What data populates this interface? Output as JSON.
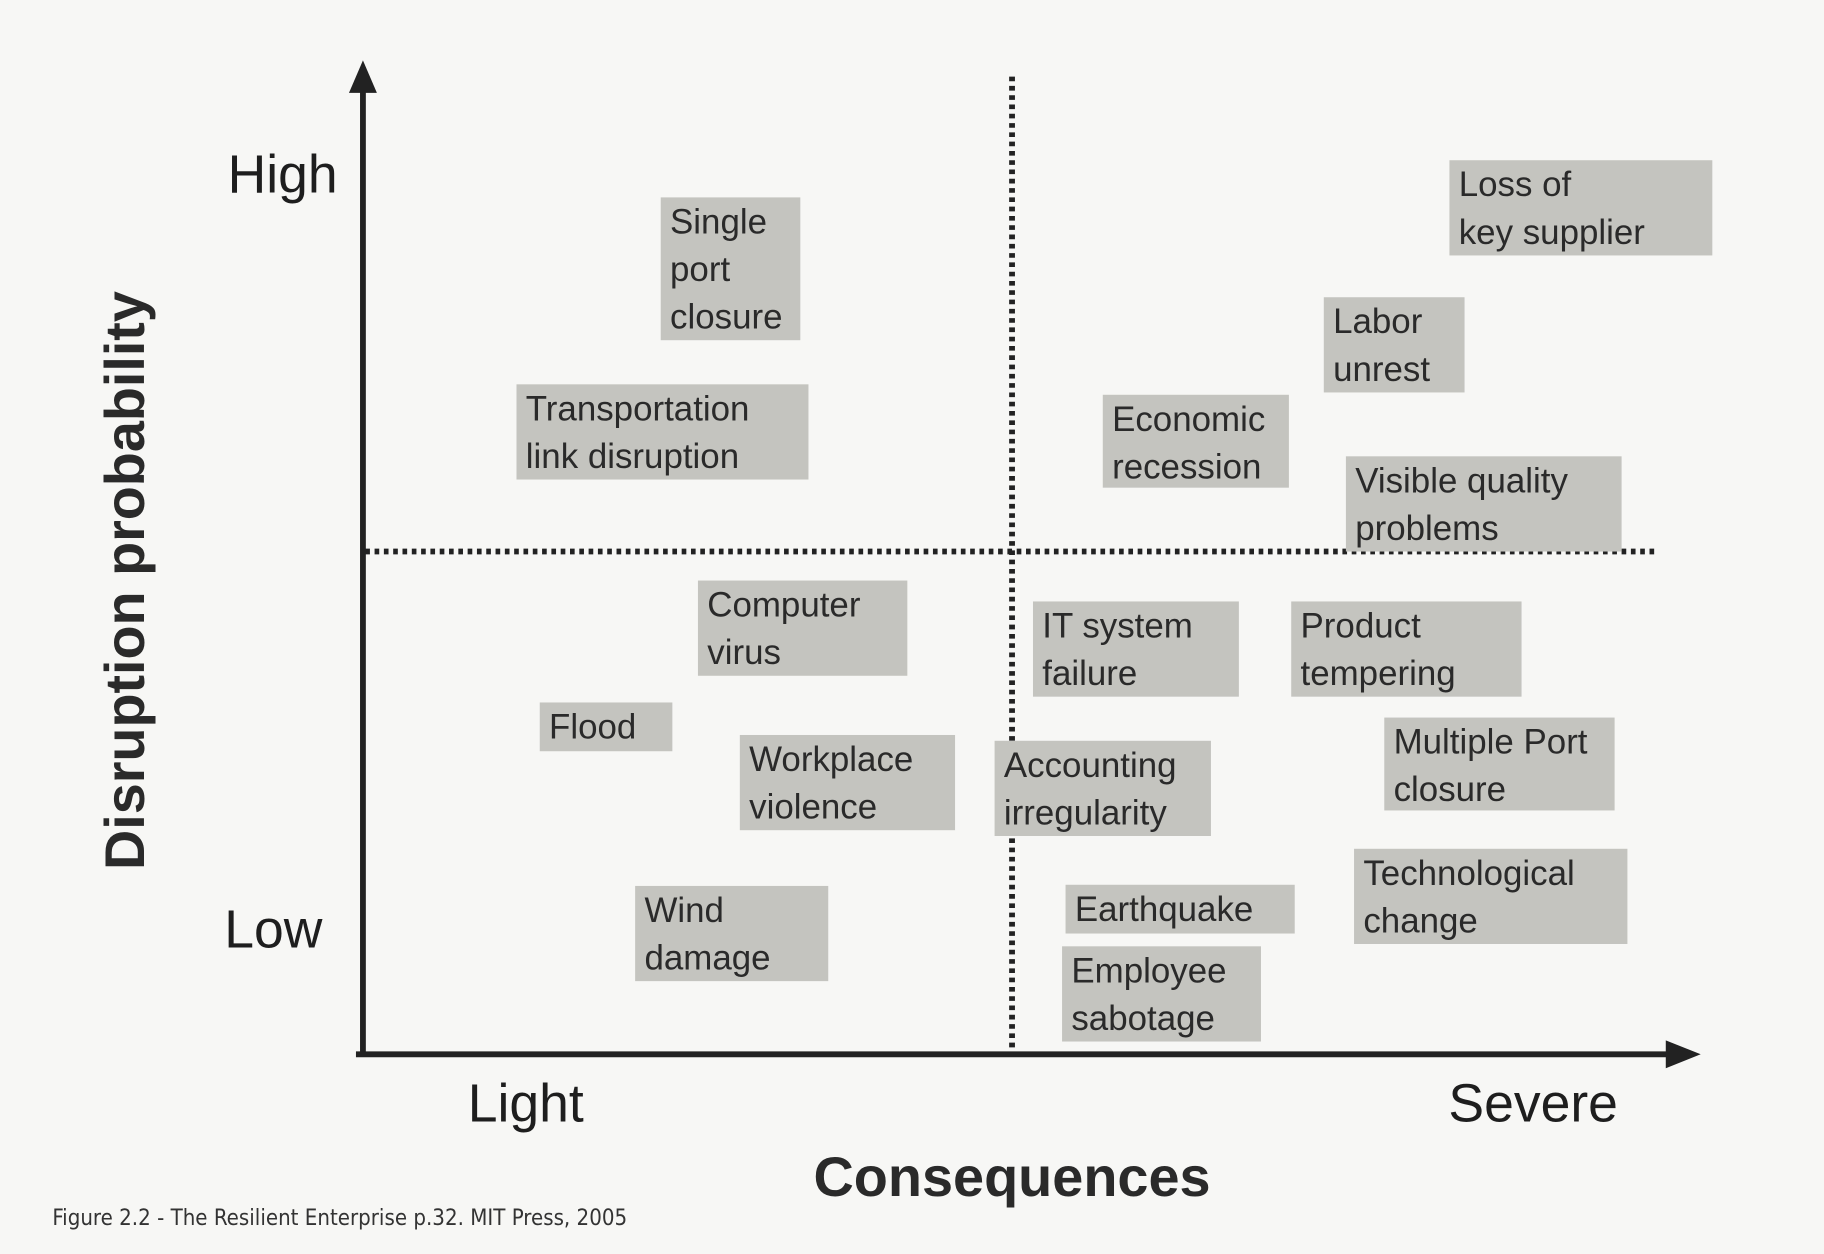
{
  "axes": {
    "y_title": "Disruption probability",
    "y_high": "High",
    "y_low": "Low",
    "x_title": "Consequences",
    "x_low": "Light",
    "x_high": "Severe"
  },
  "items": [
    {
      "lines": [
        "Single",
        "port",
        "closure"
      ]
    },
    {
      "lines": [
        "Transportation",
        "link disruption"
      ]
    },
    {
      "lines": [
        "Loss of",
        "key supplier"
      ]
    },
    {
      "lines": [
        "Labor",
        "unrest"
      ]
    },
    {
      "lines": [
        "Economic",
        "recession"
      ]
    },
    {
      "lines": [
        "Visible quality",
        "problems"
      ]
    },
    {
      "lines": [
        "Computer",
        "virus"
      ]
    },
    {
      "lines": [
        "IT system",
        "failure"
      ]
    },
    {
      "lines": [
        "Product",
        "tempering"
      ]
    },
    {
      "lines": [
        "Flood"
      ]
    },
    {
      "lines": [
        "Workplace",
        "violence"
      ]
    },
    {
      "lines": [
        "Accounting",
        "irregularity"
      ]
    },
    {
      "lines": [
        "Multiple Port",
        "closure"
      ]
    },
    {
      "lines": [
        "Wind",
        "damage"
      ]
    },
    {
      "lines": [
        "Earthquake"
      ]
    },
    {
      "lines": [
        "Technological",
        "change"
      ]
    },
    {
      "lines": [
        "Employee",
        "sabotage"
      ]
    }
  ],
  "caption": "Figure 2.2 - The Resilient Enterprise p.32. MIT Press, 2005"
}
